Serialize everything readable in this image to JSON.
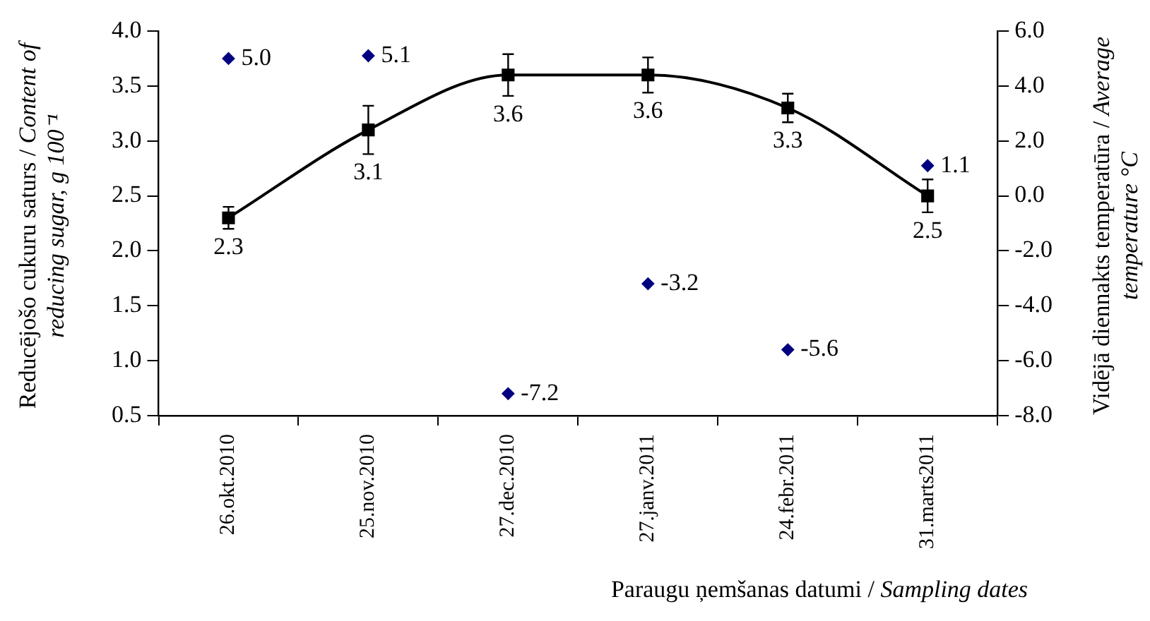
{
  "chart_data": {
    "type": "line",
    "xlabel": "Paraugu ņemšanas datumi / Sampling dates",
    "ylabel": "Reducējošo cukuru saturs / Content of reducing sugar, g 100⁻¹",
    "y2label": "Vidējā diennakts temperatūra / Average temperature °C",
    "categories": [
      "26.okt.2010",
      "25.nov.2010",
      "27.dec.2010",
      "27.janv.2011",
      "24.febr.2011",
      "31.marts2011"
    ],
    "series": [
      {
        "color": "#000000",
        "marker": "square",
        "line_style": "solid",
        "values": [
          2.3,
          3.1,
          3.6,
          3.6,
          3.3,
          2.5
        ],
        "value_labels": [
          "2.3",
          "3.1",
          "3.6",
          "3.6",
          "3.3",
          "2.5"
        ],
        "errors": [
          0.1,
          0.22,
          0.19,
          0.16,
          0.13,
          0.15
        ]
      },
      {
        "type": "scatter",
        "axis": "y2",
        "color": "#000080",
        "marker": "diamond",
        "values": [
          5.0,
          5.1,
          -7.2,
          -3.2,
          -5.6,
          1.1
        ],
        "value_labels": [
          "5.0",
          "5.1",
          "-7.2",
          "-3.2",
          "-5.6",
          "1.1"
        ]
      }
    ],
    "ylim": [
      0.5,
      4.0
    ],
    "yticks": [
      {
        "value": 0.5,
        "label": "0.5"
      },
      {
        "value": 1,
        "label": "1.0"
      },
      {
        "value": 1.5,
        "label": "1.5"
      },
      {
        "value": 2,
        "label": "2.0"
      },
      {
        "value": 2.5,
        "label": "2.5"
      },
      {
        "value": 3,
        "label": "3.0"
      },
      {
        "value": 3.5,
        "label": "3.5"
      },
      {
        "value": 4,
        "label": "4.0"
      }
    ],
    "y2lim": [
      -8,
      6
    ],
    "y2ticks": [
      {
        "value": -8,
        "label": "-8.0"
      },
      {
        "value": -6,
        "label": "-6.0"
      },
      {
        "value": -4,
        "label": "-4.0"
      },
      {
        "value": -2,
        "label": "-2.0"
      },
      {
        "value": 0,
        "label": "0.0"
      },
      {
        "value": 2,
        "label": "2.0"
      },
      {
        "value": 4,
        "label": "4.0"
      },
      {
        "value": 6,
        "label": "6.0"
      }
    ],
    "grid": false,
    "legend": false
  }
}
